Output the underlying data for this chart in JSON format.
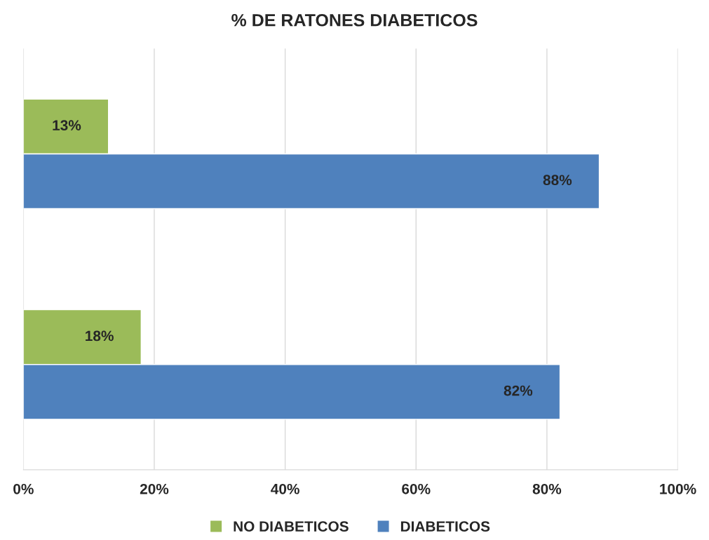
{
  "chart_data": {
    "type": "bar",
    "orientation": "horizontal",
    "title": "% DE RATONES DIABETICOS",
    "categories": [
      null,
      null
    ],
    "series": [
      {
        "name": "NO DIABETICOS",
        "color": "#9bbb59",
        "values": [
          13,
          18
        ],
        "value_labels": [
          "13%",
          "18%"
        ]
      },
      {
        "name": "DIABETICOS",
        "color": "#4f81bd",
        "values": [
          88,
          82
        ],
        "value_labels": [
          "88%",
          "82%"
        ]
      }
    ],
    "xlim": [
      0,
      100
    ],
    "xticks": [
      {
        "value": 0,
        "label": "0%"
      },
      {
        "value": 20,
        "label": "20%"
      },
      {
        "value": 40,
        "label": "40%"
      },
      {
        "value": 60,
        "label": "60%"
      },
      {
        "value": 80,
        "label": "80%"
      },
      {
        "value": 100,
        "label": "100%"
      }
    ],
    "grid": "x",
    "legend": "bottom",
    "tick_labels": "x"
  }
}
